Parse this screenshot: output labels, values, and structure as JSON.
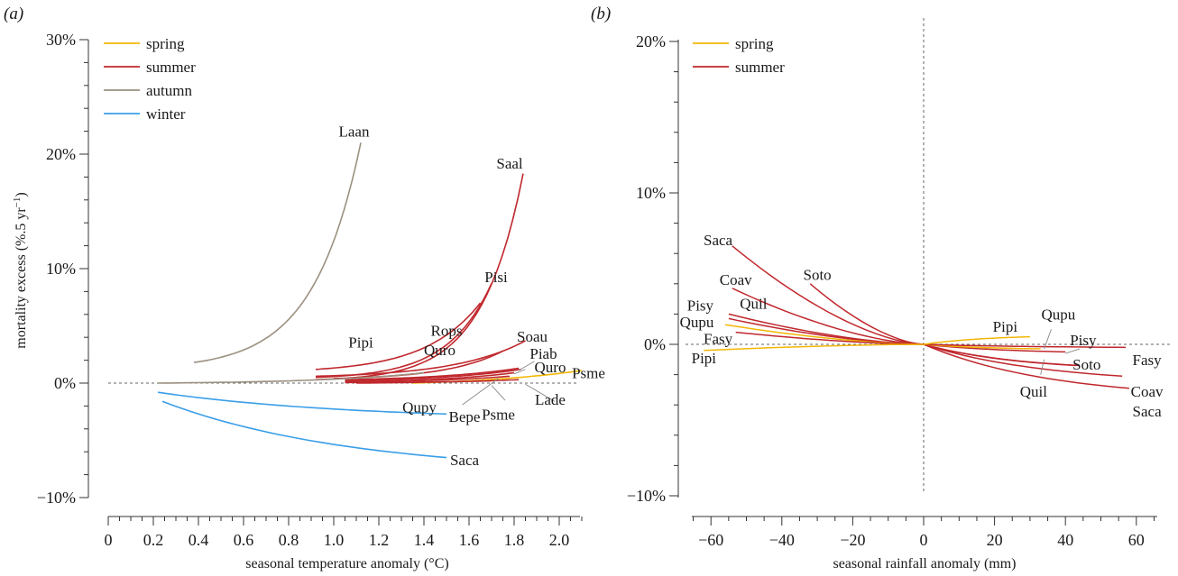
{
  "chart_data": [
    {
      "panel": "(a)",
      "type": "line",
      "xlabel": "seasonal temperature anomaly (°C)",
      "ylabel": "mortality excess (%.5 yr",
      "ylabel_sup": "−1",
      "ylabel_end": ")",
      "xlim": [
        0,
        2.1
      ],
      "ylim": [
        -10,
        30
      ],
      "x_ticks": [
        0,
        0.2,
        0.4,
        0.6,
        0.8,
        1.0,
        1.2,
        1.4,
        1.6,
        1.8,
        2.0
      ],
      "x_tick_labels": [
        "0",
        "0.2",
        "0.4",
        "0.6",
        "0.8",
        "1.0",
        "1.2",
        "1.4",
        "1.6",
        "1.8",
        "2.0"
      ],
      "y_ticks": [
        -10,
        0,
        10,
        20,
        30
      ],
      "y_tick_labels": [
        "−10%",
        "0%",
        "10%",
        "20%",
        "30%"
      ],
      "zero_line": {
        "axis": "y",
        "value": 0
      },
      "legend": {
        "position": "top-left",
        "entries": [
          {
            "name": "spring",
            "color": "#f2b705"
          },
          {
            "name": "summer",
            "color": "#c0282d"
          },
          {
            "name": "autumn",
            "color": "#9c9080"
          },
          {
            "name": "winter",
            "color": "#3a9ee8"
          }
        ]
      },
      "series": [
        {
          "name": "Laan",
          "season": "autumn",
          "x_range": [
            0.38,
            1.12
          ],
          "y_range": [
            1.8,
            21.0
          ],
          "shape": "exp",
          "k": 3.5,
          "label_at": [
            1.09,
            22.0
          ],
          "label": "Laan"
        },
        {
          "name": "Saal",
          "season": "summer",
          "x_range": [
            0.92,
            1.84
          ],
          "y_range": [
            0.3,
            18.3
          ],
          "shape": "exp",
          "k": 5.0,
          "label_at": [
            1.78,
            19.2
          ],
          "label": "Saal"
        },
        {
          "name": "Pisi",
          "season": "summer",
          "x_range": [
            0.92,
            1.7
          ],
          "y_range": [
            0.5,
            8.7
          ],
          "shape": "exp",
          "k": 4.0,
          "label_at": [
            1.72,
            9.3
          ],
          "label": "Pisi"
        },
        {
          "name": "Rops",
          "season": "summer",
          "x_range": [
            0.92,
            1.65
          ],
          "y_range": [
            1.2,
            7.0
          ],
          "shape": "exp",
          "k": 3.0,
          "label_at": [
            1.5,
            4.6
          ],
          "label": "Rops"
        },
        {
          "name": "Soau",
          "season": "summer",
          "x_range": [
            0.92,
            1.85
          ],
          "y_range": [
            0.6,
            3.7
          ],
          "shape": "exp",
          "k": 3.0,
          "label_at": [
            1.88,
            4.1
          ],
          "label": "Soau"
        },
        {
          "name": "Pipi",
          "season": "summer",
          "x_range": [
            1.0,
            1.75
          ],
          "y_range": [
            0.4,
            2.8
          ],
          "shape": "exp",
          "k": 3.0,
          "label_at": [
            1.12,
            3.6
          ],
          "label": "Pipi"
        },
        {
          "name": "Quro",
          "season": "summer",
          "x_range": [
            1.05,
            1.82
          ],
          "y_range": [
            0.3,
            1.3
          ],
          "shape": "exp",
          "k": 2.0,
          "label_at": [
            1.47,
            2.9
          ],
          "label": "Quro"
        },
        {
          "name": "Piab",
          "season": "summer",
          "x_range": [
            1.05,
            1.83
          ],
          "y_range": [
            0.2,
            1.2
          ],
          "shape": "exp",
          "k": 2.0,
          "label_at": [
            1.93,
            2.6
          ],
          "label": "Piab"
        },
        {
          "name": "Quro",
          "season": "summer",
          "x_range": [
            1.05,
            1.8
          ],
          "y_range": [
            0.1,
            0.9
          ],
          "shape": "exp",
          "k": 2.0,
          "label_at": [
            1.96,
            1.4
          ],
          "label": "Quro"
        },
        {
          "name": "Qupy",
          "season": "summer",
          "x_range": [
            1.05,
            1.78
          ],
          "y_range": [
            0.1,
            0.6
          ],
          "shape": "exp",
          "k": 2.0,
          "label_at": [
            1.38,
            -2.1
          ],
          "label": "Qupy"
        },
        {
          "name": "Lade",
          "season": "summer",
          "x_range": [
            1.05,
            1.7
          ],
          "y_range": [
            0.05,
            0.2
          ],
          "shape": "exp",
          "k": 2.0,
          "label_at": [
            1.96,
            -1.4
          ],
          "label": "Lade"
        },
        {
          "name": "Psme",
          "season": "spring",
          "x_range": [
            1.35,
            2.1
          ],
          "y_range": [
            0.0,
            1.1
          ],
          "shape": "exp",
          "k": 1.5,
          "label_at": [
            2.13,
            0.9
          ],
          "label": "Psme"
        },
        {
          "name": "Psme",
          "season": "summer",
          "x_range": [
            1.1,
            1.82
          ],
          "y_range": [
            0.0,
            0.3
          ],
          "shape": "exp",
          "k": 1.5,
          "label_at": [
            1.73,
            -2.7
          ],
          "label": "Psme"
        },
        {
          "name": "autumn-low",
          "season": "autumn",
          "x_range": [
            0.22,
            1.4
          ],
          "y_range": [
            0.0,
            0.9
          ],
          "shape": "exp",
          "k": 2.5,
          "label": ""
        },
        {
          "name": "Bepe",
          "season": "winter",
          "x_range": [
            0.22,
            1.5
          ],
          "y_range": [
            -0.8,
            -2.7
          ],
          "shape": "neg-sat",
          "k": 1.5,
          "label_at": [
            1.58,
            -2.9
          ],
          "label": "Bepe"
        },
        {
          "name": "Saca",
          "season": "winter",
          "x_range": [
            0.24,
            1.5
          ],
          "y_range": [
            -1.6,
            -6.5
          ],
          "shape": "neg-sat",
          "k": 1.5,
          "label_at": [
            1.58,
            -6.7
          ],
          "label": "Saca"
        }
      ],
      "leaders": [
        {
          "from": [
            1.57,
            -1.9
          ],
          "to": [
            1.73,
            0.4
          ]
        },
        {
          "from": [
            1.76,
            -1.5
          ],
          "to": [
            1.7,
            -0.2
          ]
        },
        {
          "from": [
            1.98,
            -1.6
          ],
          "to": [
            1.85,
            -0.1
          ]
        },
        {
          "from": [
            1.89,
            1.9
          ],
          "to": [
            1.82,
            1.1
          ]
        },
        {
          "from": [
            1.85,
            1.2
          ],
          "to": [
            1.8,
            0.8
          ]
        }
      ]
    },
    {
      "panel": "(b)",
      "type": "line",
      "xlabel": "seasonal rainfall anomaly (mm)",
      "ylabel": "",
      "xlim": [
        -65,
        65
      ],
      "ylim": [
        -10,
        20
      ],
      "x_ticks": [
        -60,
        -40,
        -20,
        0,
        20,
        40,
        60
      ],
      "x_tick_labels": [
        "−60",
        "−40",
        "−20",
        "0",
        "20",
        "40",
        "60"
      ],
      "y_ticks": [
        -10,
        0,
        10,
        20
      ],
      "y_tick_labels": [
        "−10%",
        "0%",
        "10%",
        "20%"
      ],
      "zero_line": {
        "axis": "both",
        "value": 0
      },
      "legend": {
        "position": "top-left",
        "entries": [
          {
            "name": "spring",
            "color": "#f2b705"
          },
          {
            "name": "summer",
            "color": "#c0282d"
          }
        ]
      },
      "series": [
        {
          "name": "Saca",
          "season": "summer",
          "x": [
            -54,
            0,
            58
          ],
          "y": [
            6.5,
            0,
            -2.9
          ],
          "label": "Saca"
        },
        {
          "name": "Soto",
          "season": "summer",
          "x": [
            -32,
            0,
            44
          ],
          "y": [
            4.0,
            0,
            -1.4
          ],
          "label": "Soto"
        },
        {
          "name": "Coav",
          "season": "summer",
          "x": [
            -54,
            0,
            56
          ],
          "y": [
            3.7,
            0,
            -2.1
          ],
          "label": "Coav"
        },
        {
          "name": "Quil",
          "season": "summer",
          "x": [
            -55,
            0,
            43
          ],
          "y": [
            2.0,
            0,
            -1.4
          ],
          "label": "Quil"
        },
        {
          "name": "Pisy",
          "season": "summer",
          "x": [
            -55,
            0,
            40
          ],
          "y": [
            1.7,
            0,
            -0.5
          ],
          "label": "Pisy"
        },
        {
          "name": "Qupu",
          "season": "spring",
          "x": [
            -56,
            0,
            33
          ],
          "y": [
            1.3,
            0,
            -0.3
          ],
          "label": "Qupu"
        },
        {
          "name": "Fasy",
          "season": "summer",
          "x": [
            -53,
            0,
            57
          ],
          "y": [
            0.8,
            0,
            -0.2
          ],
          "label": "Fasy"
        },
        {
          "name": "Pipi",
          "season": "spring",
          "x": [
            -62,
            0,
            30
          ],
          "y": [
            -0.4,
            0,
            0.5
          ],
          "label": "Pipi"
        }
      ],
      "labels": [
        {
          "text": "Saca",
          "at": [
            -58,
            6.9
          ]
        },
        {
          "text": "Soto",
          "at": [
            -30,
            4.6
          ]
        },
        {
          "text": "Coav",
          "at": [
            -53,
            4.3
          ]
        },
        {
          "text": "Pisy",
          "at": [
            -63,
            2.6
          ]
        },
        {
          "text": "Quil",
          "at": [
            -48,
            2.7
          ]
        },
        {
          "text": "Qupu",
          "at": [
            -64,
            1.5
          ]
        },
        {
          "text": "Fasy",
          "at": [
            -58,
            0.4
          ]
        },
        {
          "text": "Pipi",
          "at": [
            -62,
            -0.9
          ]
        },
        {
          "text": "Pipi",
          "at": [
            23,
            1.2
          ]
        },
        {
          "text": "Qupu",
          "at": [
            38,
            2.0
          ]
        },
        {
          "text": "Pisy",
          "at": [
            45,
            0.3
          ]
        },
        {
          "text": "Soto",
          "at": [
            46,
            -1.3
          ]
        },
        {
          "text": "Fasy",
          "at": [
            63,
            -1.0
          ]
        },
        {
          "text": "Coav",
          "at": [
            63,
            -3.1
          ]
        },
        {
          "text": "Quil",
          "at": [
            31,
            -3.1
          ]
        },
        {
          "text": "Saca",
          "at": [
            63,
            -4.4
          ]
        }
      ],
      "leaders": [
        {
          "from": [
            36,
            1.0
          ],
          "to": [
            34,
            -0.3
          ]
        },
        {
          "from": [
            44,
            -0.3
          ],
          "to": [
            40,
            -0.6
          ]
        },
        {
          "from": [
            33,
            -2.0
          ],
          "to": [
            34,
            -1.0
          ]
        }
      ]
    }
  ]
}
